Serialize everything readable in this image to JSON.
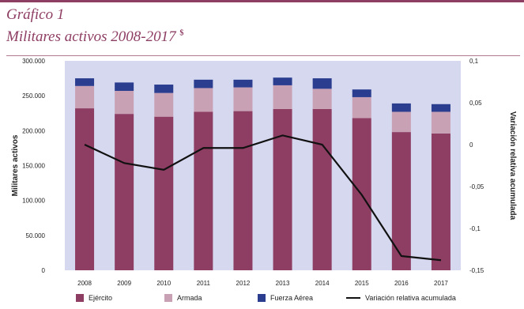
{
  "header": {
    "figure_label": "Gráfico 1",
    "title": "Militares activos 2008-2017",
    "note_marker": "$"
  },
  "colors": {
    "accent": "#8e3d63",
    "plot_bg": "#d5d8ee",
    "ejercito": "#8e3d63",
    "armada": "#c9a1b4",
    "fuerza_aerea": "#2a3d8f",
    "line": "#111111"
  },
  "chart_data": {
    "type": "bar",
    "stacked": true,
    "categories": [
      "2008",
      "2009",
      "2010",
      "2011",
      "2012",
      "2013",
      "2014",
      "2015",
      "2016",
      "2017"
    ],
    "series": [
      {
        "name": "Ejército",
        "values": [
          232000,
          224000,
          220000,
          227000,
          228000,
          231000,
          231000,
          218000,
          198000,
          196000
        ]
      },
      {
        "name": "Armada",
        "values": [
          32000,
          33000,
          34000,
          34000,
          34000,
          34000,
          29000,
          30000,
          29000,
          31000
        ]
      },
      {
        "name": "Fuerza Aérea",
        "values": [
          11000,
          12000,
          12000,
          12000,
          11000,
          11000,
          15000,
          11000,
          12000,
          11000
        ]
      }
    ],
    "line_series": {
      "name": "Variación relativa acumulada",
      "values": [
        0.0,
        -0.022,
        -0.03,
        -0.004,
        -0.004,
        0.011,
        0.0,
        -0.06,
        -0.133,
        -0.138
      ]
    },
    "ylabel": "Militares activos",
    "ylabel_right": "Variación relativa acumulada",
    "ylim": [
      0,
      300000
    ],
    "ylim_right": [
      -0.15,
      0.1
    ],
    "yticks": [
      "0",
      "50.000",
      "100.000",
      "150.000",
      "200.000",
      "250.000",
      "300.000"
    ],
    "yticks_right": [
      "-0,15",
      "-0,1",
      "-0,05",
      "0",
      "0,05",
      "0,1"
    ],
    "grid": false,
    "legend_position": "bottom"
  },
  "legend": {
    "items": [
      "Ejército",
      "Armada",
      "Fuerza Aérea",
      "Variación relativa acumulada"
    ]
  }
}
